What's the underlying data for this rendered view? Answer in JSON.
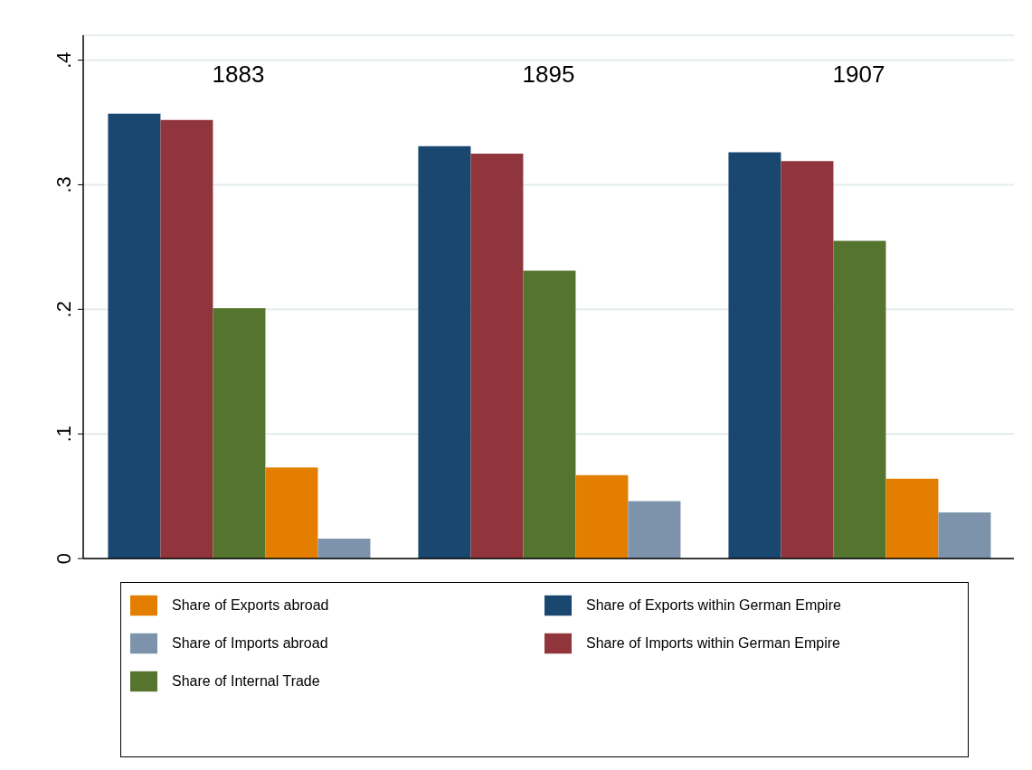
{
  "chart_data": {
    "type": "bar",
    "categories": [
      "1883",
      "1895",
      "1907"
    ],
    "series": [
      {
        "name": "Share of Exports within German Empire",
        "color": "#1a476f",
        "values": [
          0.357,
          0.331,
          0.326
        ]
      },
      {
        "name": "Share of Imports within German Empire",
        "color": "#90353b",
        "values": [
          0.352,
          0.325,
          0.319
        ]
      },
      {
        "name": "Share of Internal Trade",
        "color": "#55752f",
        "values": [
          0.201,
          0.231,
          0.255
        ]
      },
      {
        "name": "Share of Exports abroad",
        "color": "#e37e00",
        "values": [
          0.073,
          0.067,
          0.064
        ]
      },
      {
        "name": "Share of Imports abroad",
        "color": "#7d93ab",
        "values": [
          0.016,
          0.046,
          0.037
        ]
      }
    ],
    "ylim": [
      0,
      0.42
    ],
    "yticks": [
      0,
      {
        "value": 0.1,
        "label": ".1"
      },
      {
        "value": 0.2,
        "label": ".2"
      },
      {
        "value": 0.3,
        "label": ".3"
      },
      {
        "value": 0.4,
        "label": ".4"
      }
    ],
    "grid": "y",
    "legend": "bottom"
  }
}
